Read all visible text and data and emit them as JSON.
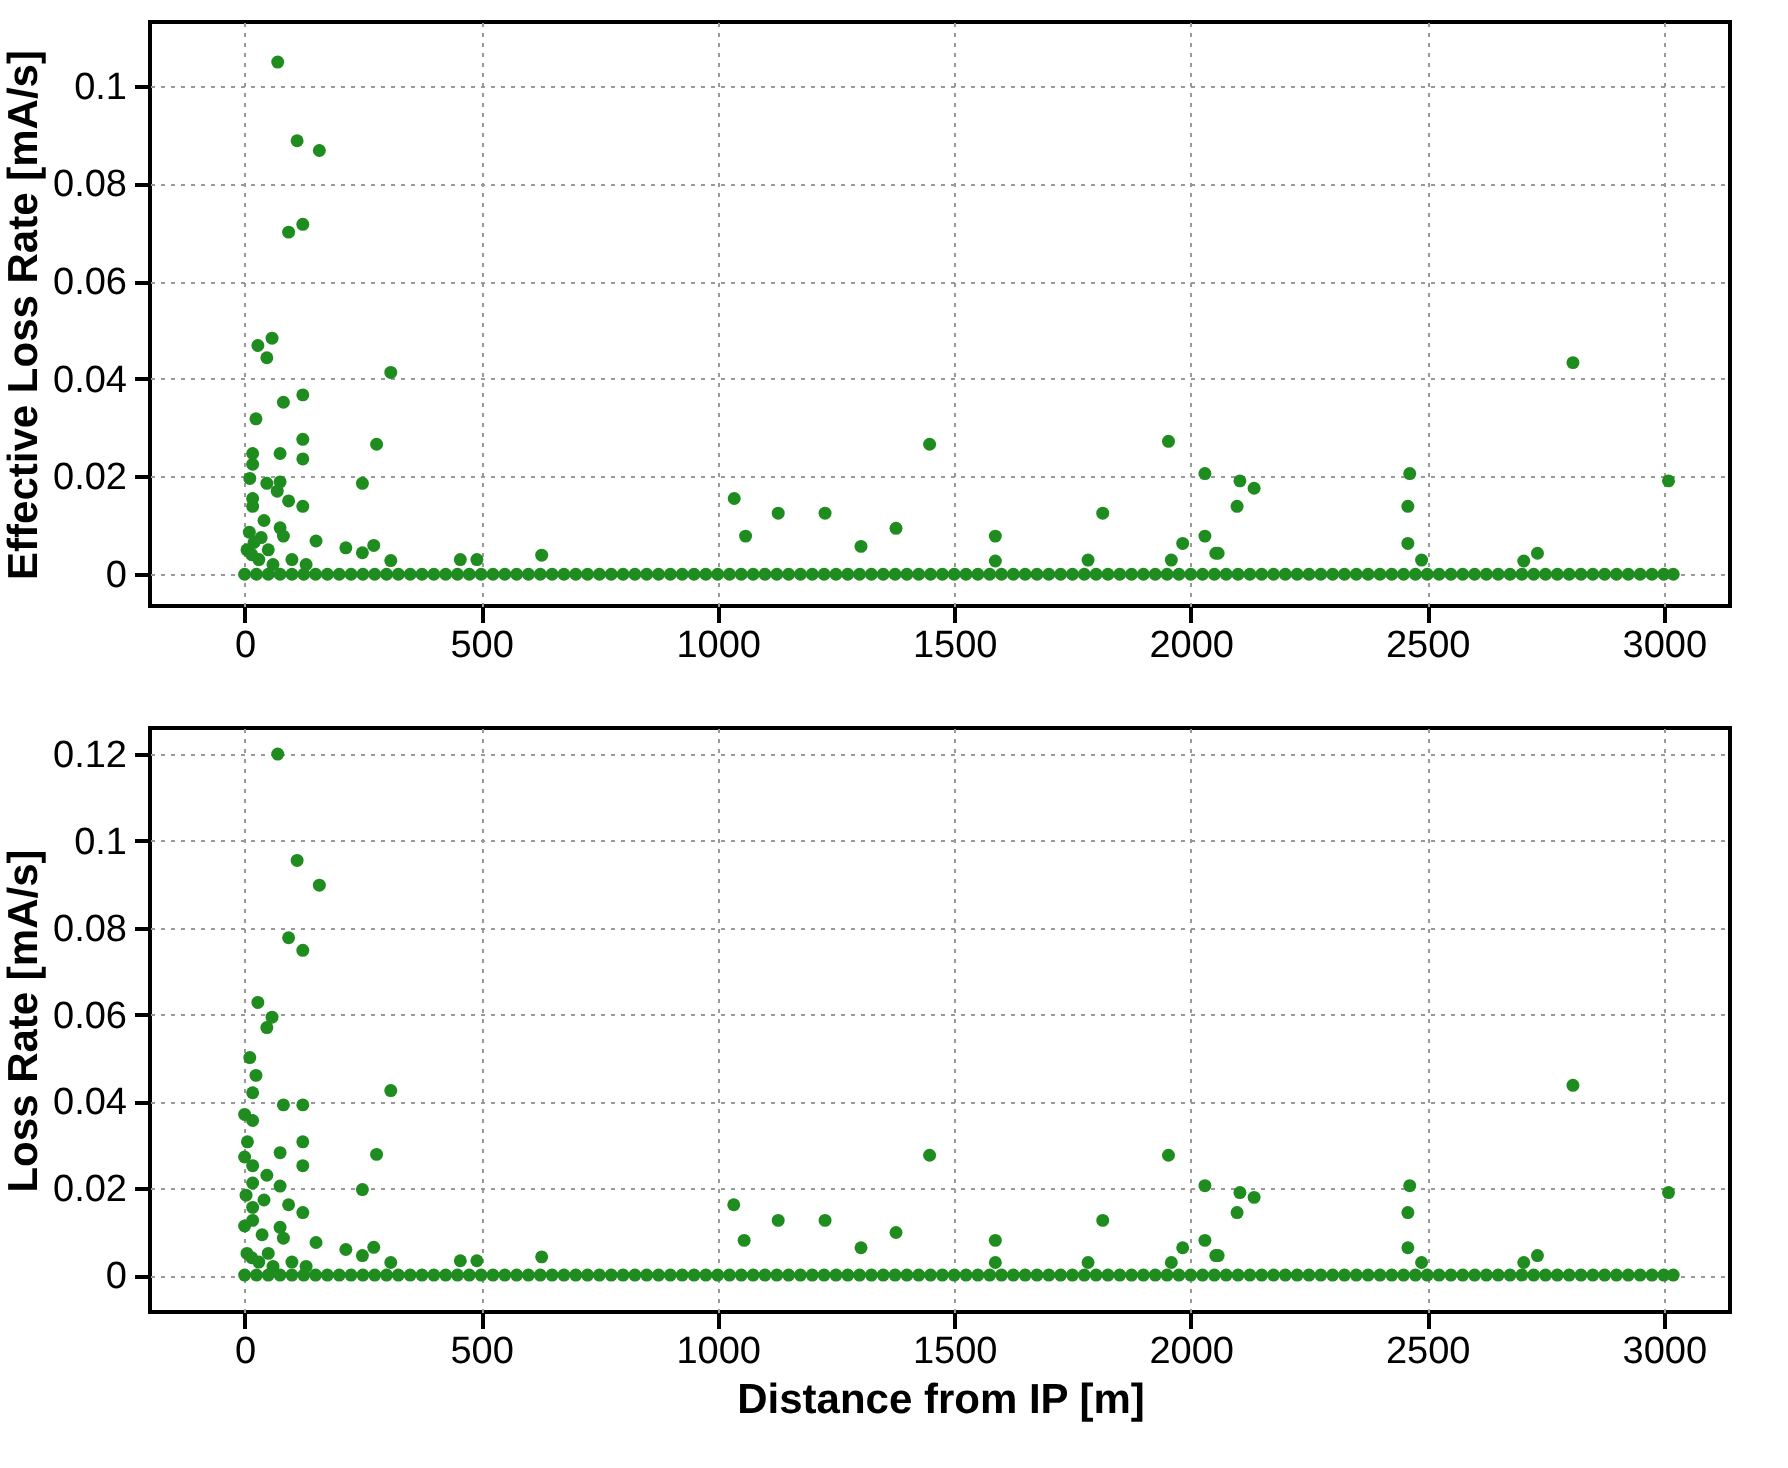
{
  "chart_data": [
    {
      "type": "scatter",
      "ylabel": "Effective Loss Rate [mA/s]",
      "xlim": [
        -200,
        3140
      ],
      "ylim": [
        -0.0065,
        0.113
      ],
      "xticks": [
        0,
        500,
        1000,
        1500,
        2000,
        2500,
        3000
      ],
      "yticks": [
        0,
        0.02,
        0.04,
        0.06,
        0.08,
        0.1
      ],
      "grid": true,
      "marker": "circle",
      "series": [
        {
          "color": "#1e8c1e",
          "x": [
            70,
            111,
            158,
            93,
            123,
            28,
            58,
            47,
            309,
            82,
            123,
            24,
            123,
            279,
            17,
            75,
            123,
            17,
            11,
            47,
            75,
            249,
            69,
            17,
            17,
            93,
            123,
            41,
            10,
            75,
            82,
            151,
            214,
            249,
            273,
            309,
            628,
            456,
            491,
            1035,
            1059,
            1128,
            1227,
            1303,
            1377,
            1448,
            1587,
            1587,
            1814,
            1783,
            1953,
            2030,
            1983,
            2030,
            2053,
            2058,
            1959,
            2098,
            2104,
            2134,
            2463,
            2459,
            2459,
            2488,
            2704,
            2733,
            2808,
            3010,
            5,
            15,
            30,
            50,
            60,
            100,
            130,
            20,
            35,
            0,
            25,
            50,
            75,
            100,
            125,
            150,
            175,
            200,
            225,
            250,
            275,
            300,
            325,
            350,
            375,
            400,
            425,
            450,
            475,
            500,
            525,
            550,
            575,
            600,
            625,
            650,
            675,
            700,
            725,
            750,
            775,
            800,
            825,
            850,
            875,
            900,
            925,
            950,
            975,
            1000,
            1025,
            1050,
            1075,
            1100,
            1125,
            1150,
            1175,
            1200,
            1225,
            1250,
            1275,
            1300,
            1325,
            1350,
            1375,
            1400,
            1425,
            1450,
            1475,
            1500,
            1525,
            1550,
            1575,
            1600,
            1625,
            1650,
            1675,
            1700,
            1725,
            1750,
            1775,
            1800,
            1825,
            1850,
            1875,
            1900,
            1925,
            1950,
            1975,
            2000,
            2025,
            2050,
            2075,
            2100,
            2125,
            2150,
            2175,
            2200,
            2225,
            2250,
            2275,
            2300,
            2325,
            2350,
            2375,
            2400,
            2425,
            2450,
            2475,
            2500,
            2525,
            2550,
            2575,
            2600,
            2625,
            2650,
            2675,
            2700,
            2725,
            2750,
            2775,
            2800,
            2825,
            2850,
            2875,
            2900,
            2925,
            2950,
            2975,
            3000,
            3020
          ],
          "values": [
            0.1048,
            0.0887,
            0.0867,
            0.07,
            0.0716,
            0.0468,
            0.0483,
            0.0443,
            0.0413,
            0.0352,
            0.0367,
            0.0318,
            0.0276,
            0.0266,
            0.0247,
            0.0247,
            0.0236,
            0.0225,
            0.0196,
            0.0186,
            0.0189,
            0.0186,
            0.017,
            0.0155,
            0.0139,
            0.015,
            0.0139,
            0.011,
            0.0086,
            0.0095,
            0.0078,
            0.0068,
            0.0054,
            0.0044,
            0.0059,
            0.0028,
            0.0039,
            0.003,
            0.003,
            0.0155,
            0.0078,
            0.0125,
            0.0125,
            0.0057,
            0.0094,
            0.0266,
            0.0078,
            0.0027,
            0.0125,
            0.0029,
            0.0272,
            0.0206,
            0.0063,
            0.0078,
            0.0043,
            0.0043,
            0.0029,
            0.0139,
            0.0191,
            0.0176,
            0.0206,
            0.0139,
            0.0063,
            0.0029,
            0.0027,
            0.0043,
            0.0433,
            0.0191,
            0.005,
            0.004,
            0.003,
            0.005,
            0.002,
            0.003,
            0.002,
            0.0065,
            0.0075,
            0,
            0,
            0,
            0,
            0,
            0,
            0,
            0,
            0,
            0,
            0,
            0,
            0,
            0,
            0,
            0,
            0,
            0,
            0,
            0,
            0,
            0,
            0,
            0,
            0,
            0,
            0,
            0,
            0,
            0,
            0,
            0,
            0,
            0,
            0,
            0,
            0,
            0,
            0,
            0,
            0,
            0,
            0,
            0,
            0,
            0,
            0,
            0,
            0,
            0,
            0,
            0,
            0,
            0,
            0,
            0,
            0,
            0,
            0,
            0,
            0,
            0,
            0,
            0,
            0,
            0,
            0,
            0,
            0,
            0,
            0,
            0,
            0,
            0,
            0,
            0,
            0,
            0,
            0,
            0,
            0,
            0,
            0,
            0,
            0,
            0,
            0,
            0,
            0,
            0,
            0,
            0,
            0,
            0,
            0,
            0,
            0,
            0,
            0,
            0,
            0,
            0,
            0,
            0,
            0,
            0,
            0,
            0,
            0,
            0,
            0,
            0,
            0,
            0,
            0,
            0,
            0,
            0,
            0,
            0,
            0,
            0
          ]
        }
      ]
    },
    {
      "type": "scatter",
      "xlabel": "Distance from IP [m]",
      "ylabel": "Loss Rate [mA/s]",
      "xlim": [
        -200,
        3140
      ],
      "ylim": [
        -0.0085,
        0.126
      ],
      "xticks": [
        0,
        500,
        1000,
        1500,
        2000,
        2500,
        3000
      ],
      "yticks": [
        0,
        0.02,
        0.04,
        0.06,
        0.08,
        0.1,
        0.12
      ],
      "grid": true,
      "marker": "circle",
      "series": [
        {
          "color": "#1e8c1e",
          "x": [
            70,
            111,
            158,
            93,
            123,
            28,
            58,
            47,
            11,
            24,
            17,
            309,
            82,
            123,
            0,
            17,
            6,
            123,
            75,
            279,
            0,
            17,
            123,
            47,
            17,
            75,
            249,
            3,
            41,
            17,
            93,
            17,
            123,
            0,
            75,
            82,
            37,
            151,
            214,
            273,
            249,
            309,
            1034,
            1056,
            628,
            456,
            491,
            1128,
            1227,
            1303,
            1377,
            1448,
            1587,
            1587,
            1814,
            1783,
            1953,
            2030,
            1983,
            2030,
            2053,
            2058,
            1959,
            2098,
            2104,
            2134,
            2463,
            2459,
            2459,
            2488,
            2704,
            2733,
            2808,
            3010,
            5,
            15,
            30,
            50,
            60,
            100,
            130,
            0,
            25,
            50,
            75,
            100,
            125,
            150,
            175,
            200,
            225,
            250,
            275,
            300,
            325,
            350,
            375,
            400,
            425,
            450,
            475,
            500,
            525,
            550,
            575,
            600,
            625,
            650,
            675,
            700,
            725,
            750,
            775,
            800,
            825,
            850,
            875,
            900,
            925,
            950,
            975,
            1000,
            1025,
            1050,
            1075,
            1100,
            1125,
            1150,
            1175,
            1200,
            1225,
            1250,
            1275,
            1300,
            1325,
            1350,
            1375,
            1400,
            1425,
            1450,
            1475,
            1500,
            1525,
            1550,
            1575,
            1600,
            1625,
            1650,
            1675,
            1700,
            1725,
            1750,
            1775,
            1800,
            1825,
            1850,
            1875,
            1900,
            1925,
            1950,
            1975,
            2000,
            2025,
            2050,
            2075,
            2100,
            2125,
            2150,
            2175,
            2200,
            2225,
            2250,
            2275,
            2300,
            2325,
            2350,
            2375,
            2400,
            2425,
            2450,
            2475,
            2500,
            2525,
            2550,
            2575,
            2600,
            2625,
            2650,
            2675,
            2700,
            2725,
            2750,
            2775,
            2800,
            2825,
            2850,
            2875,
            2900,
            2925,
            2950,
            2975,
            3000,
            3020
          ],
          "values": [
            0.12,
            0.0955,
            0.0898,
            0.0777,
            0.0748,
            0.0628,
            0.0594,
            0.057,
            0.0501,
            0.046,
            0.042,
            0.0425,
            0.0392,
            0.0392,
            0.037,
            0.0356,
            0.0307,
            0.0307,
            0.0282,
            0.0278,
            0.0272,
            0.0252,
            0.0252,
            0.023,
            0.0212,
            0.0205,
            0.0197,
            0.0184,
            0.0173,
            0.0156,
            0.0162,
            0.0126,
            0.0144,
            0.0113,
            0.011,
            0.0085,
            0.0093,
            0.0075,
            0.0059,
            0.0064,
            0.0045,
            0.0029,
            0.0162,
            0.008,
            0.0042,
            0.0033,
            0.0033,
            0.0126,
            0.0126,
            0.0063,
            0.0098,
            0.0276,
            0.008,
            0.0029,
            0.0126,
            0.0029,
            0.0276,
            0.0206,
            0.0063,
            0.008,
            0.0045,
            0.0045,
            0.0029,
            0.0144,
            0.019,
            0.0179,
            0.0206,
            0.0144,
            0.0063,
            0.0029,
            0.0029,
            0.0045,
            0.0437,
            0.019,
            0.005,
            0.004,
            0.003,
            0.005,
            0.002,
            0.003,
            0.002,
            0,
            0,
            0,
            0,
            0,
            0,
            0,
            0,
            0,
            0,
            0,
            0,
            0,
            0,
            0,
            0,
            0,
            0,
            0,
            0,
            0,
            0,
            0,
            0,
            0,
            0,
            0,
            0,
            0,
            0,
            0,
            0,
            0,
            0,
            0,
            0,
            0,
            0,
            0,
            0,
            0,
            0,
            0,
            0,
            0,
            0,
            0,
            0,
            0,
            0,
            0,
            0,
            0,
            0,
            0,
            0,
            0,
            0,
            0,
            0,
            0,
            0,
            0,
            0,
            0,
            0,
            0,
            0,
            0,
            0,
            0,
            0,
            0,
            0,
            0,
            0,
            0,
            0,
            0,
            0,
            0,
            0,
            0,
            0,
            0,
            0,
            0,
            0,
            0,
            0,
            0,
            0,
            0,
            0,
            0,
            0,
            0,
            0,
            0,
            0,
            0,
            0,
            0,
            0,
            0,
            0,
            0,
            0,
            0,
            0,
            0,
            0,
            0,
            0,
            0,
            0,
            0,
            0,
            0,
            0,
            0,
            0
          ]
        }
      ]
    }
  ]
}
